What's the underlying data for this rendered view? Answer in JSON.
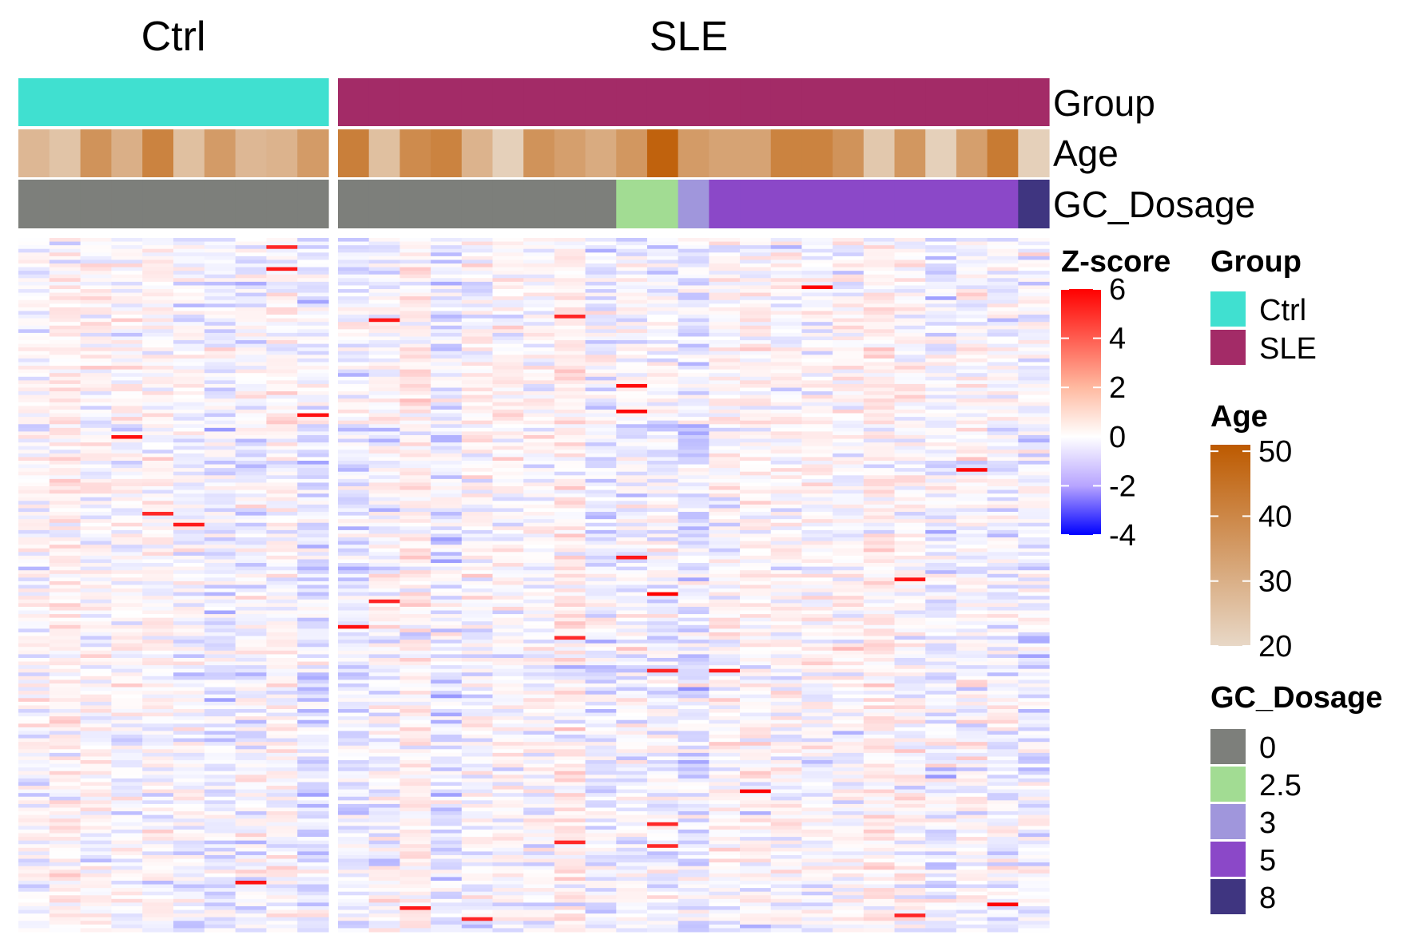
{
  "chart_data": {
    "type": "heatmap",
    "column_splits": [
      {
        "title": "Ctrl",
        "n_samples": 10
      },
      {
        "title": "SLE",
        "n_samples": 23
      }
    ],
    "n_rows": 190,
    "value_name": "Z-score",
    "color_scale": {
      "range": [
        -4,
        6
      ],
      "ticks": [
        6,
        4,
        2,
        0,
        -2,
        -4
      ],
      "colors": [
        [
          -4,
          "#0000ff"
        ],
        [
          0,
          "#ffffff"
        ],
        [
          6,
          "#ff0000"
        ]
      ]
    },
    "annotations": [
      {
        "name": "Group",
        "kind": "categorical",
        "legend_entries": [
          {
            "label": "Ctrl",
            "color": "#40e0d0"
          },
          {
            "label": "SLE",
            "color": "#a32b67"
          }
        ],
        "values": [
          "Ctrl",
          "Ctrl",
          "Ctrl",
          "Ctrl",
          "Ctrl",
          "Ctrl",
          "Ctrl",
          "Ctrl",
          "Ctrl",
          "Ctrl",
          "SLE",
          "SLE",
          "SLE",
          "SLE",
          "SLE",
          "SLE",
          "SLE",
          "SLE",
          "SLE",
          "SLE",
          "SLE",
          "SLE",
          "SLE",
          "SLE",
          "SLE",
          "SLE",
          "SLE",
          "SLE",
          "SLE",
          "SLE",
          "SLE",
          "SLE",
          "SLE"
        ]
      },
      {
        "name": "Age",
        "kind": "continuous",
        "range": [
          20,
          51
        ],
        "ticks": [
          50,
          40,
          30,
          20
        ],
        "low_color": "#e8d8c7",
        "high_color": "#bd5a00",
        "values": [
          28,
          25,
          37,
          30,
          41,
          26,
          35,
          28,
          29,
          35,
          42,
          26,
          39,
          41,
          29,
          22,
          37,
          34,
          31,
          36,
          49,
          35,
          33,
          33,
          41,
          41,
          37,
          24,
          36,
          22,
          34,
          43,
          22
        ]
      },
      {
        "name": "GC_Dosage",
        "kind": "categorical",
        "legend_entries": [
          {
            "label": "0",
            "color": "#7d7f7b"
          },
          {
            "label": "2.5",
            "color": "#a2dc93"
          },
          {
            "label": "3",
            "color": "#a096dc"
          },
          {
            "label": "5",
            "color": "#8b48c8"
          },
          {
            "label": "8",
            "color": "#3f3580"
          }
        ],
        "values": [
          "0",
          "0",
          "0",
          "0",
          "0",
          "0",
          "0",
          "0",
          "0",
          "0",
          "0",
          "0",
          "0",
          "0",
          "0",
          "0",
          "0",
          "0",
          "0",
          "2.5",
          "2.5",
          "3",
          "5",
          "5",
          "5",
          "5",
          "5",
          "5",
          "5",
          "5",
          "5",
          "5",
          "8"
        ]
      }
    ],
    "legends": [
      "Z-score",
      "Group",
      "Age",
      "GC_Dosage"
    ],
    "legend_placement": "right",
    "grid": false
  }
}
